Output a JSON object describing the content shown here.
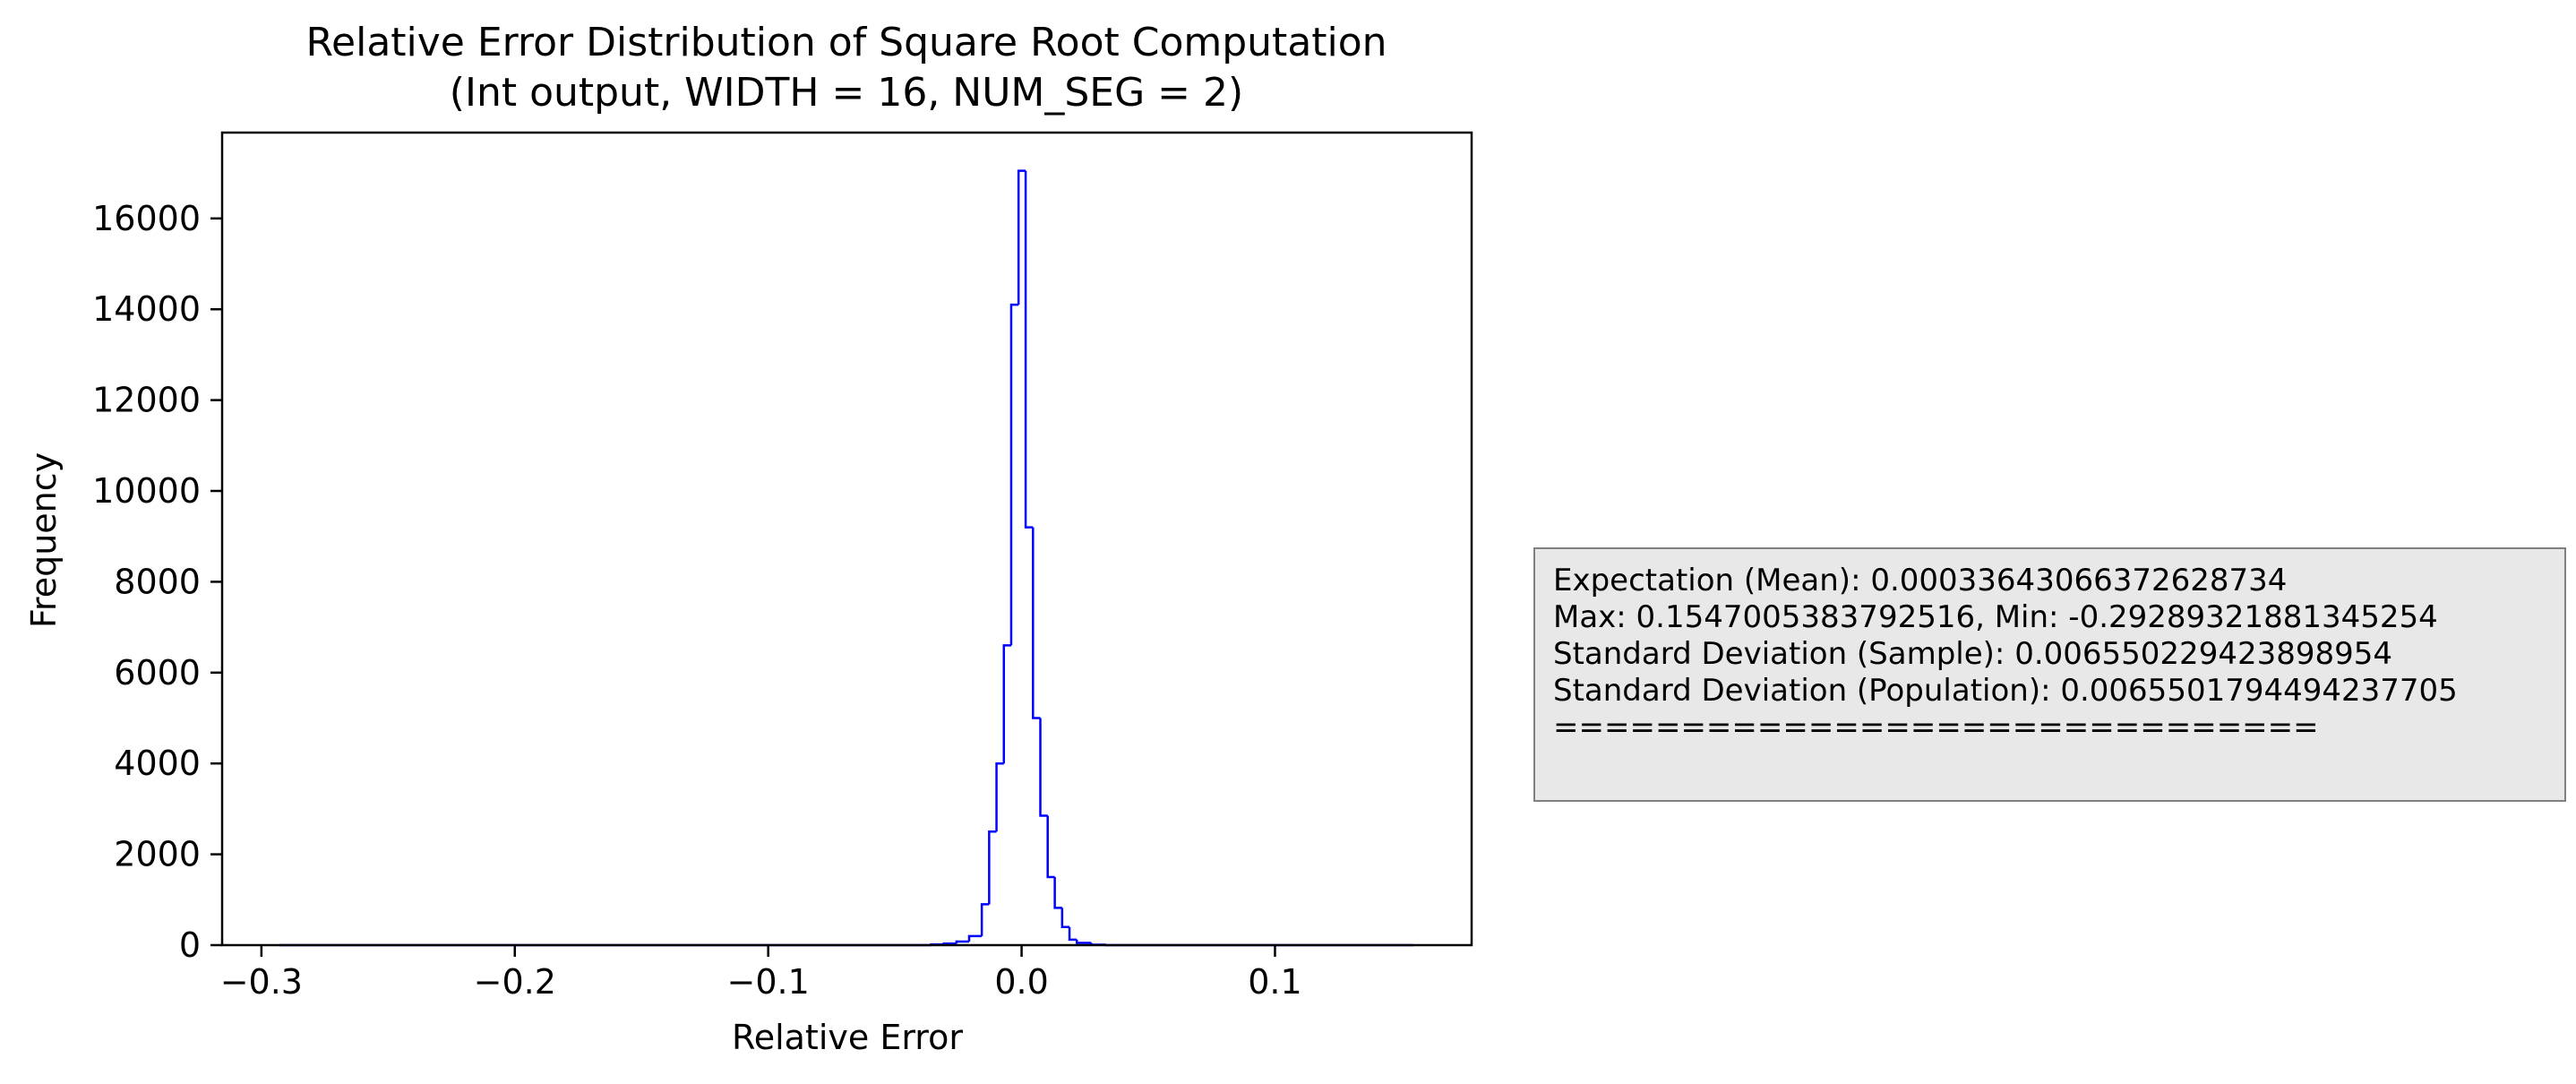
{
  "chart_data": {
    "type": "histogram",
    "title_line1": "Relative Error Distribution of Square Root Computation",
    "title_line2": "(Int output, WIDTH = 16, NUM_SEG = 2)",
    "xlabel": "Relative Error",
    "ylabel": "Frequency",
    "xlim": [
      -0.3155,
      0.1776
    ],
    "ylim": [
      0,
      17890
    ],
    "xticks": [
      -0.3,
      -0.2,
      -0.1,
      0.0,
      0.1
    ],
    "xtick_labels": [
      "−0.3",
      "−0.2",
      "−0.1",
      "0.0",
      "0.1"
    ],
    "yticks": [
      0,
      2000,
      4000,
      6000,
      8000,
      10000,
      12000,
      14000,
      16000
    ],
    "ytick_labels": [
      "0",
      "2000",
      "4000",
      "6000",
      "8000",
      "10000",
      "12000",
      "14000",
      "16000"
    ],
    "histtype": "step",
    "color": "#0000ff",
    "bins": [
      {
        "x0": -0.2929,
        "x1": -0.0357,
        "count": 0
      },
      {
        "x0": -0.0357,
        "x1": -0.0307,
        "count": 15
      },
      {
        "x0": -0.0307,
        "x1": -0.0257,
        "count": 35
      },
      {
        "x0": -0.0257,
        "x1": -0.0207,
        "count": 80
      },
      {
        "x0": -0.0207,
        "x1": -0.0157,
        "count": 200
      },
      {
        "x0": -0.0157,
        "x1": -0.0128,
        "count": 900
      },
      {
        "x0": -0.0128,
        "x1": -0.0099,
        "count": 2500
      },
      {
        "x0": -0.0099,
        "x1": -0.007,
        "count": 4000
      },
      {
        "x0": -0.007,
        "x1": -0.0041,
        "count": 6600
      },
      {
        "x0": -0.0041,
        "x1": -0.0012,
        "count": 14100
      },
      {
        "x0": -0.0012,
        "x1": 0.0016,
        "count": 17050
      },
      {
        "x0": 0.0016,
        "x1": 0.0045,
        "count": 9200
      },
      {
        "x0": 0.0045,
        "x1": 0.0074,
        "count": 5000
      },
      {
        "x0": 0.0074,
        "x1": 0.0103,
        "count": 2850
      },
      {
        "x0": 0.0103,
        "x1": 0.0131,
        "count": 1500
      },
      {
        "x0": 0.0131,
        "x1": 0.016,
        "count": 820
      },
      {
        "x0": 0.016,
        "x1": 0.0189,
        "count": 400
      },
      {
        "x0": 0.0189,
        "x1": 0.0218,
        "count": 120
      },
      {
        "x0": 0.0218,
        "x1": 0.0275,
        "count": 50
      },
      {
        "x0": 0.0275,
        "x1": 0.0333,
        "count": 10
      },
      {
        "x0": 0.0333,
        "x1": 0.1547,
        "count": 0
      }
    ]
  },
  "stats_box": {
    "lines": [
      "Expectation (Mean): 0.0003364306637262873​4",
      "Max: 0.1547005383792516, Min: -0.29289321881345254",
      "Standard Deviation (Sample): 0.006550229423898954",
      "Standard Deviation (Population): 0.006550179449423770​5",
      "=============================="
    ]
  }
}
